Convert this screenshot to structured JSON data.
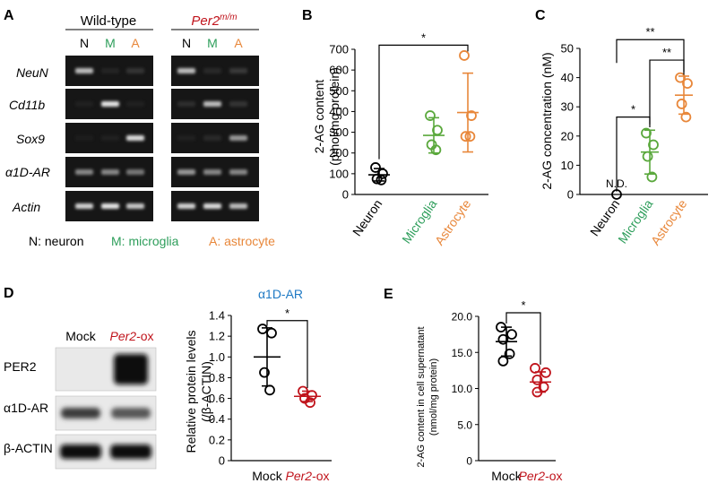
{
  "panelA": {
    "label": "A",
    "wt_title": "Wild-type",
    "mut_title_main": "Per2",
    "mut_title_sup": "m/m",
    "lanes": [
      "N",
      "M",
      "A"
    ],
    "genes": [
      "NeuN",
      "Cd11b",
      "Sox9",
      "α1D-AR",
      "Actin"
    ],
    "legend": {
      "neuron": "N: neuron",
      "microglia": "M: microglia",
      "astrocyte": "A: astrocyte"
    },
    "band_intensity_wt": [
      [
        0.75,
        0.08,
        0.2
      ],
      [
        0.05,
        0.95,
        0.05
      ],
      [
        0.02,
        0.05,
        0.9
      ],
      [
        0.55,
        0.55,
        0.5
      ],
      [
        0.85,
        0.95,
        0.8
      ]
    ],
    "band_intensity_mut": [
      [
        0.75,
        0.12,
        0.22
      ],
      [
        0.15,
        0.75,
        0.2
      ],
      [
        0.05,
        0.12,
        0.6
      ],
      [
        0.6,
        0.55,
        0.55
      ],
      [
        0.85,
        0.9,
        0.75
      ]
    ]
  },
  "colors": {
    "neuron": "#000000",
    "microglia": "#2e9e5b",
    "astrocyte": "#e8873a",
    "ox": "#c0141c",
    "title_blue": "#1f7ac4"
  },
  "chart_data": [
    {
      "id": "B",
      "type": "scatter",
      "panel_label": "B",
      "ylabel_line1": "2-AG content",
      "ylabel_line2": "(pmol/mg protein)",
      "ylim": [
        0,
        700
      ],
      "yticks": [
        0,
        100,
        200,
        300,
        400,
        500,
        600,
        700
      ],
      "categories": [
        "Neuron",
        "Microglia",
        "Astrocyte"
      ],
      "series": [
        {
          "name": "Neuron",
          "color": "#000000",
          "points": [
            130,
            100,
            75,
            70
          ],
          "mean": 95,
          "sd": 30
        },
        {
          "name": "Microglia",
          "color": "#5aa83c",
          "points": [
            380,
            310,
            240,
            215
          ],
          "mean": 285,
          "sd": 85
        },
        {
          "name": "Astrocyte",
          "color": "#e8873a",
          "points": [
            670,
            380,
            280,
            280
          ],
          "mean": 395,
          "sd": 190
        }
      ],
      "significance": [
        {
          "from": 0,
          "to": 2,
          "label": "*"
        }
      ]
    },
    {
      "id": "C",
      "type": "scatter",
      "panel_label": "C",
      "ylabel": "2-AG concentration (nM)",
      "ylim": [
        0,
        50
      ],
      "yticks": [
        0,
        10,
        20,
        30,
        40,
        50
      ],
      "categories": [
        "Neuron",
        "Microglia",
        "Astrocyte"
      ],
      "series": [
        {
          "name": "Neuron",
          "color": "#000000",
          "points": [
            0
          ],
          "mean": null,
          "sd": null
        },
        {
          "name": "Microglia",
          "color": "#5aa83c",
          "points": [
            21,
            17,
            13,
            6
          ],
          "mean": 14.5,
          "sd": 7.5
        },
        {
          "name": "Astrocyte",
          "color": "#e8873a",
          "points": [
            40,
            38,
            31,
            26.5
          ],
          "mean": 34,
          "sd": 6.5
        }
      ],
      "nd_label": "N.D.",
      "significance": [
        {
          "from": 0,
          "to": 1,
          "label": "*"
        },
        {
          "from": 1,
          "to": 2,
          "label": "**"
        },
        {
          "from": 0,
          "to": 2,
          "label": "**"
        }
      ]
    },
    {
      "id": "D",
      "type": "scatter",
      "panel_label": "D",
      "title": "α1D-AR",
      "ylabel_line1": "Relative protein levels",
      "ylabel_line2": "(/β-ACTIN)",
      "ylim": [
        0,
        1.4
      ],
      "yticks": [
        0,
        0.2,
        0.4,
        0.6,
        0.8,
        1.0,
        1.2,
        1.4
      ],
      "yticklabels": [
        "0",
        "0.2",
        "0.4",
        "0.6",
        "0.8",
        "1.0",
        "1.2",
        "1.4"
      ],
      "categories": [
        "Mock",
        "Per2-ox"
      ],
      "series": [
        {
          "name": "Mock",
          "color": "#000000",
          "points": [
            1.27,
            1.23,
            0.85,
            0.68
          ],
          "mean": 1.0,
          "sd": 0.28
        },
        {
          "name": "Per2-ox",
          "color": "#c0141c",
          "points": [
            0.67,
            0.63,
            0.6,
            0.56
          ],
          "mean": 0.62,
          "sd": 0.05
        }
      ],
      "significance": [
        {
          "from": 0,
          "to": 1,
          "label": "*"
        }
      ]
    },
    {
      "id": "E",
      "type": "scatter",
      "panel_label": "E",
      "ylabel_line1": "2-AG content in cell supernatant",
      "ylabel_line2": "(nmol/mg protein)",
      "ylim": [
        0,
        20
      ],
      "yticks": [
        0,
        5,
        10,
        15,
        20
      ],
      "yticklabels": [
        "0",
        "5.0",
        "10.0",
        "15.0",
        "20.0"
      ],
      "categories": [
        "Mock",
        "Per2-ox"
      ],
      "series": [
        {
          "name": "Mock",
          "color": "#000000",
          "points": [
            18.5,
            17.5,
            16.8,
            14.8,
            13.8
          ],
          "mean": 16.5,
          "sd": 2.0
        },
        {
          "name": "Per2-ox",
          "color": "#c0141c",
          "points": [
            12.8,
            12.2,
            11.2,
            10.2,
            9.5
          ],
          "mean": 10.9,
          "sd": 1.4
        }
      ],
      "significance": [
        {
          "from": 0,
          "to": 1,
          "label": "*"
        }
      ]
    }
  ],
  "panelD_blot": {
    "lanes": [
      "Mock",
      "Per2-ox"
    ],
    "lane2_main": "Per2",
    "lane2_suffix": "-ox",
    "bands": [
      "PER2",
      "α1D-AR",
      "β-ACTIN"
    ],
    "band_intensity": [
      [
        0.0,
        1.0
      ],
      [
        0.75,
        0.6
      ],
      [
        1.0,
        1.0
      ]
    ]
  },
  "xlabels_ox": {
    "main": "Per2",
    "suffix": "-ox",
    "mock": "Mock"
  }
}
